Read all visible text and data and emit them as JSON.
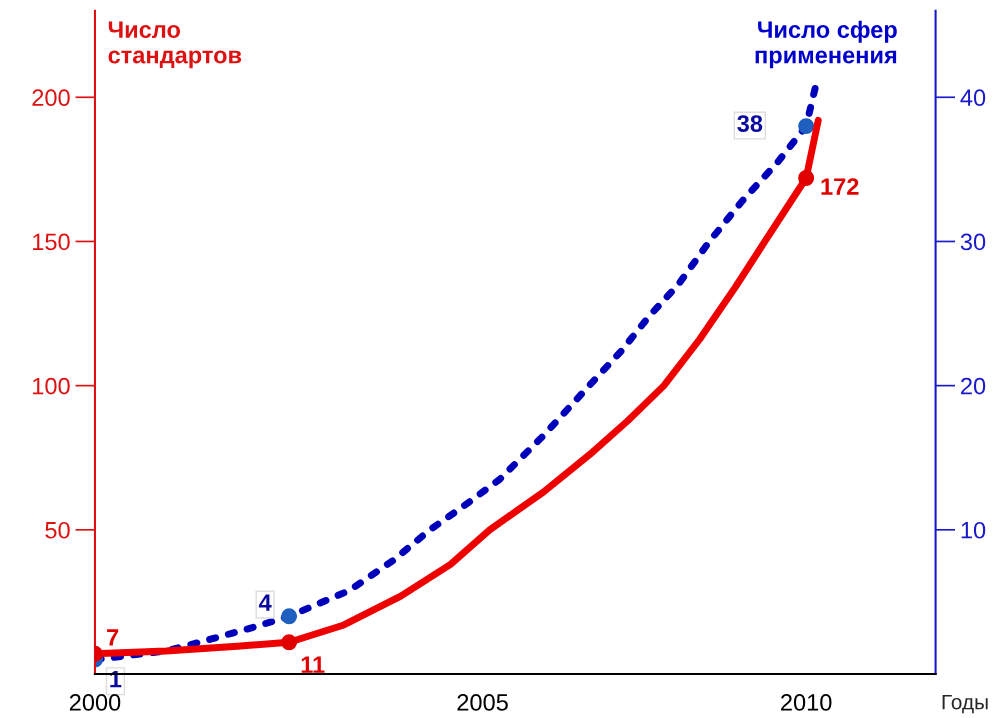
{
  "chart_data": {
    "type": "line",
    "ylabel": "Число\nстандартов",
    "y2label": "Число сфер\nприменения",
    "xlabel": "Годы",
    "xlim": [
      2000,
      2011.82
    ],
    "xticks": [
      {
        "value": 2000,
        "label": "2000"
      },
      {
        "value": 2005.45,
        "label": "2005"
      },
      {
        "value": 2010,
        "label": "2010"
      }
    ],
    "ylim": [
      0,
      230
    ],
    "yticks": [
      50,
      100,
      150,
      200
    ],
    "y2lim": [
      0,
      46
    ],
    "y2ticks": [
      10,
      20,
      30,
      40
    ],
    "grid": false,
    "legend": false,
    "series": [
      {
        "axis": "y",
        "color": "#ee0000",
        "line_style": "solid",
        "marker": "none",
        "x": [
          2000,
          2001,
          2002,
          2002.73,
          2003.5,
          2004.3,
          2005,
          2005.55,
          2006.3,
          2007,
          2007.5,
          2008,
          2008.5,
          2009,
          2009.42,
          2010,
          2010.17
        ],
        "values": [
          7,
          8,
          9.6,
          11,
          17,
          27,
          38,
          50,
          63,
          77,
          88,
          100,
          116,
          134,
          150,
          172,
          192
        ]
      },
      {
        "axis": "y2",
        "color": "#0000bb",
        "line_style": "dotted",
        "marker": "none",
        "x": [
          2000,
          2001,
          2001.47,
          2002.2,
          2002.73,
          2003.58,
          2004.2,
          2004.71,
          2005.2,
          2005.69,
          2006.3,
          2006.95,
          2007.4,
          2007.79,
          2008.2,
          2008.64,
          2009.1,
          2009.6,
          2010,
          2010.13
        ],
        "values": [
          1,
          1.6,
          2.2,
          3.2,
          4,
          5.8,
          7.9,
          10,
          11.7,
          13.5,
          16.5,
          20,
          22.4,
          24.8,
          27,
          30,
          32.8,
          35.5,
          38,
          40.7
        ]
      },
      {
        "type": "scatter",
        "axis": "y",
        "color": "#e00000",
        "marker": "circle",
        "x": [
          2000,
          2002.73,
          2010
        ],
        "values": [
          7,
          11,
          172
        ],
        "value_labels": [
          "7",
          "11",
          "172"
        ]
      },
      {
        "type": "scatter",
        "axis": "y2",
        "color": "#1f5fbf",
        "marker": "circle",
        "x": [
          2000,
          2002.73,
          2010
        ],
        "values": [
          1,
          4,
          38
        ],
        "value_labels": [
          "1",
          "4",
          "38"
        ]
      }
    ]
  }
}
